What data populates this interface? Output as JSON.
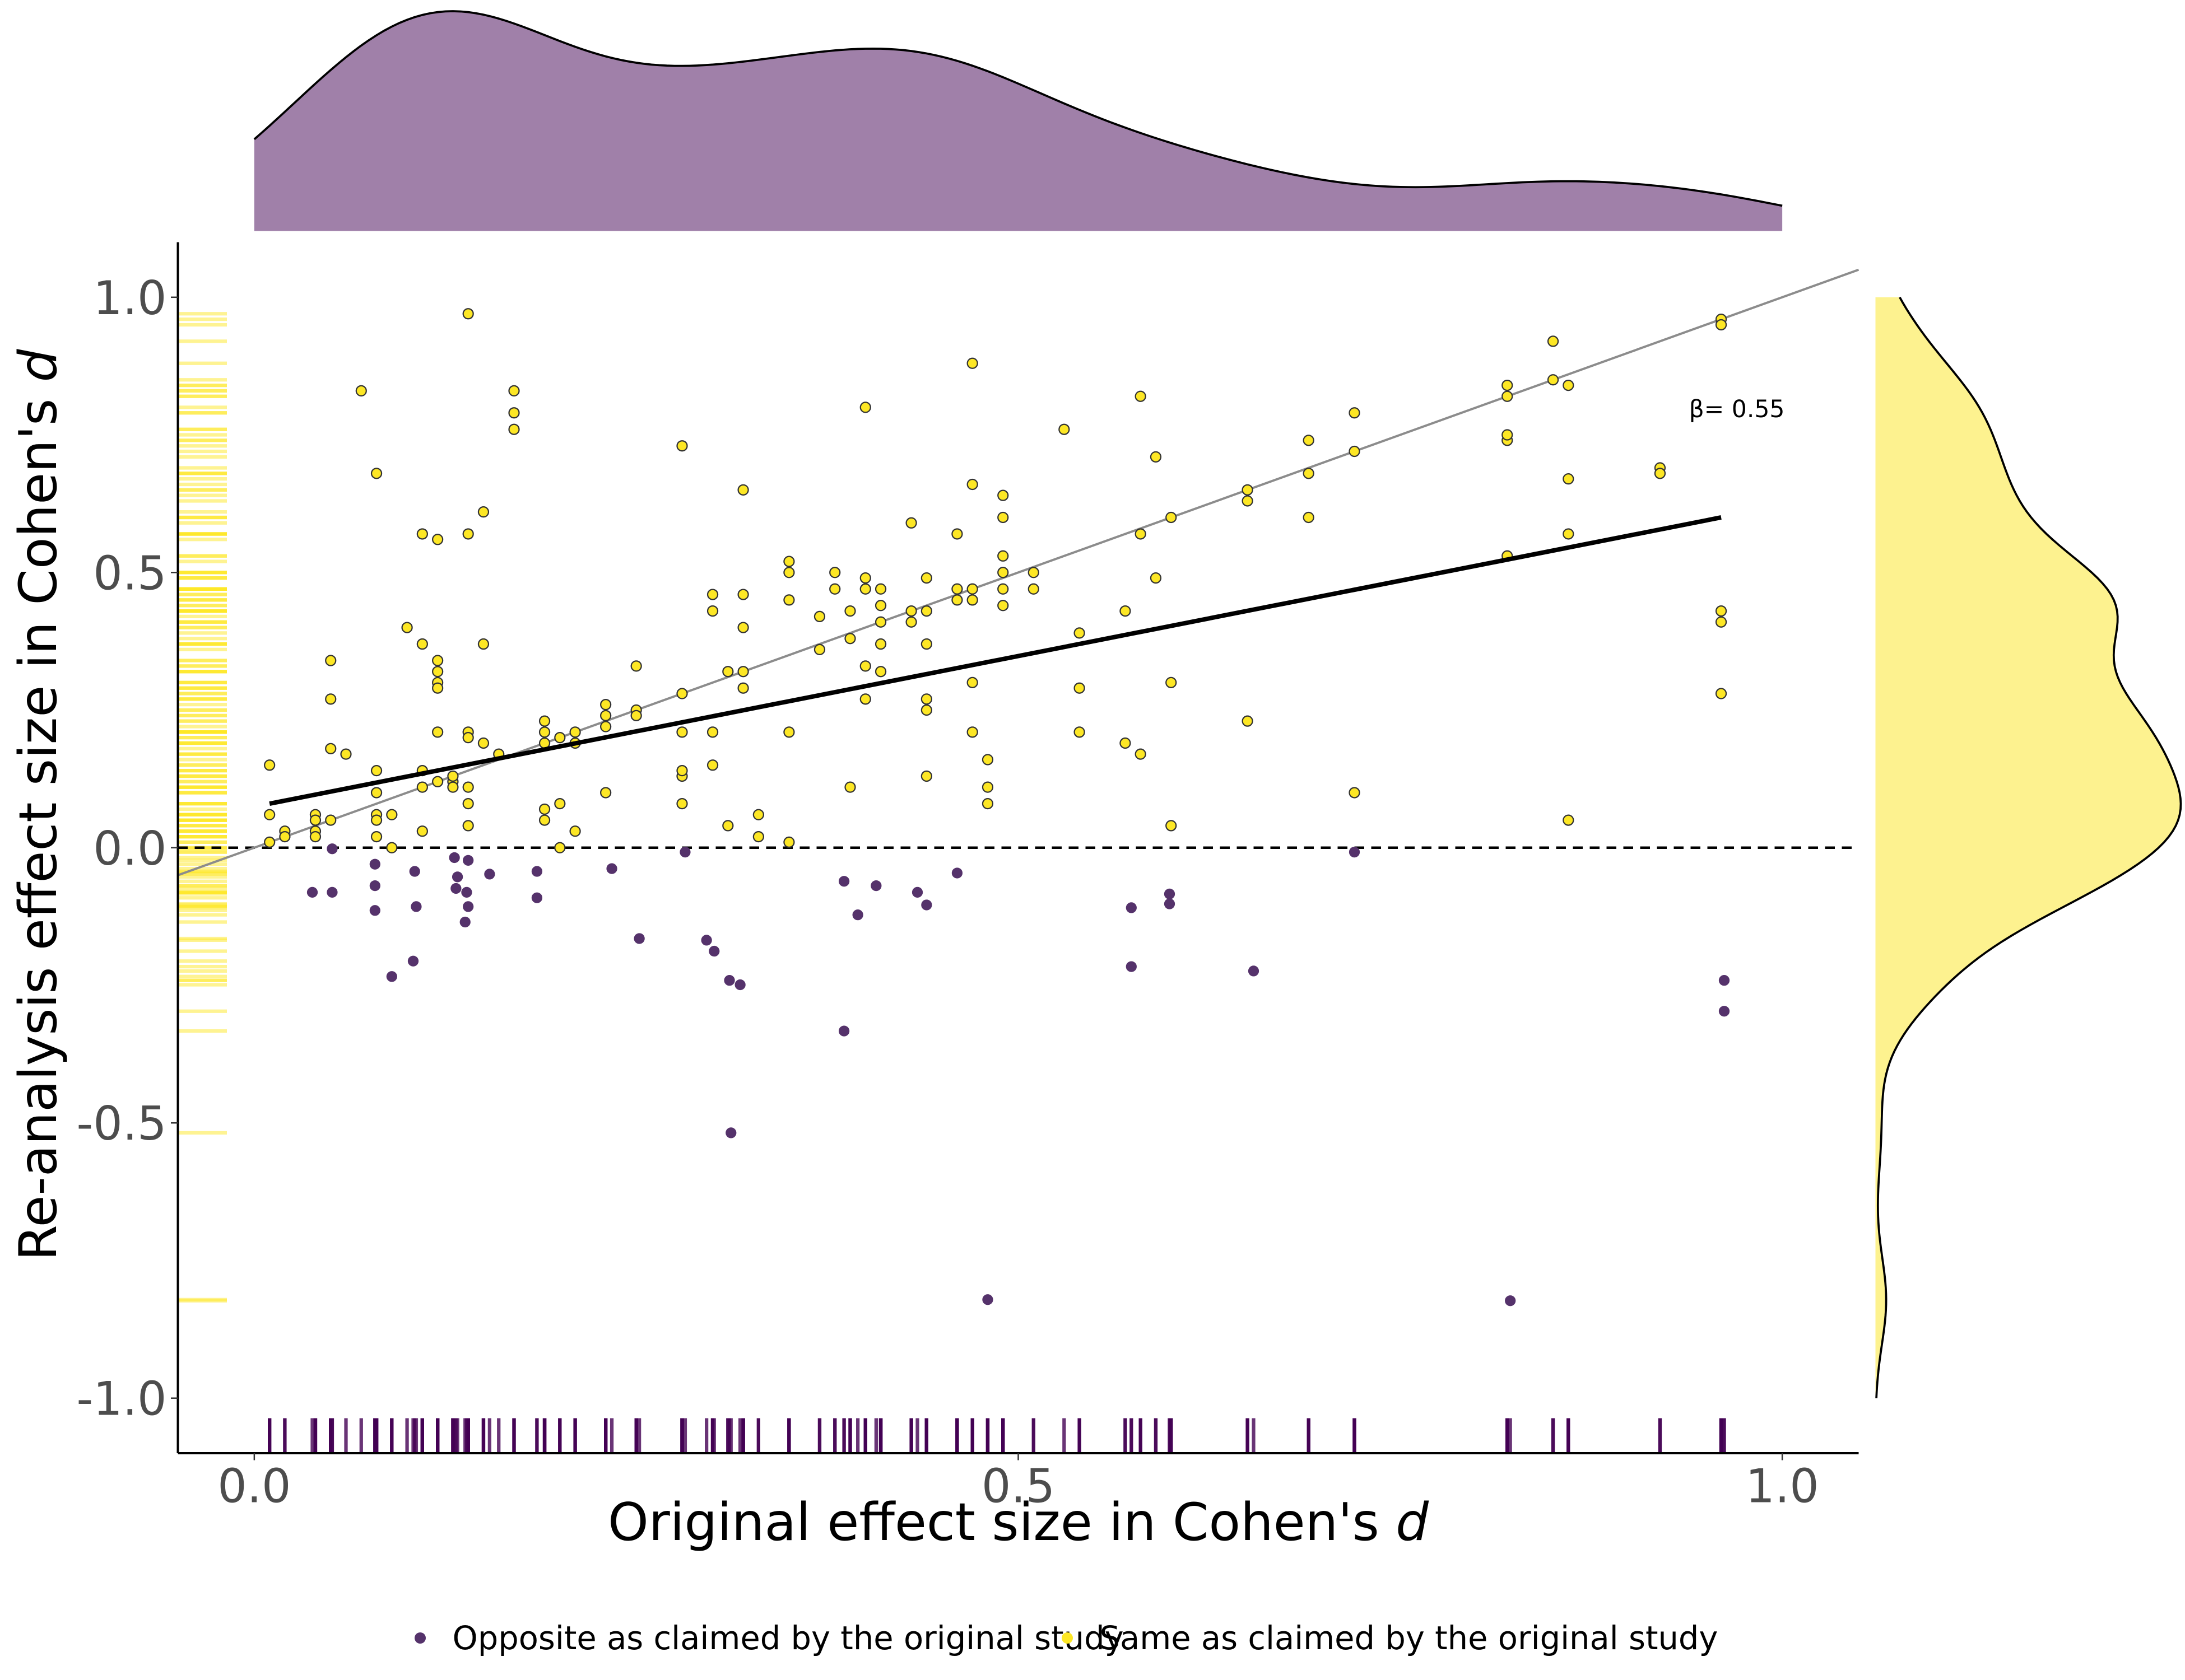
{
  "chart_data": {
    "type": "scatter",
    "xlabel": [
      "Original effect size in Cohen's ",
      "d"
    ],
    "ylabel": [
      "Re-analysis effect size in Cohen's ",
      "d"
    ],
    "annotation": "β= 0.55",
    "xlim": [
      -0.05,
      1.05
    ],
    "ylim": [
      -1.1,
      1.1
    ],
    "xticks": [
      {
        "value": 0,
        "label": "0.0"
      },
      {
        "value": 0.5,
        "label": "0.5"
      },
      {
        "value": 1,
        "label": "1.0"
      }
    ],
    "yticks": [
      {
        "value": -1,
        "label": "-1.0"
      },
      {
        "value": -0.5,
        "label": "-0.5"
      },
      {
        "value": 0,
        "label": "0.0"
      },
      {
        "value": 0.5,
        "label": "0.5"
      },
      {
        "value": 1,
        "label": "1.0"
      }
    ],
    "hline": 0,
    "regression": {
      "x": [
        0.01,
        0.96
      ],
      "y": [
        0.08,
        0.6
      ]
    },
    "marginal_x_color": "#a080a9",
    "marginal_y_color": "#fdf28f",
    "rug_x_color": "#440154",
    "rug_y_color": "#fde725",
    "series": [
      {
        "name": "Opposite as claimed by the original study",
        "color": "#55326b",
        "x": [
          0.038,
          0.051,
          0.051,
          0.079,
          0.079,
          0.079,
          0.09,
          0.105,
          0.104,
          0.106,
          0.131,
          0.132,
          0.133,
          0.139,
          0.14,
          0.138,
          0.14,
          0.154,
          0.185,
          0.185,
          0.234,
          0.252,
          0.282,
          0.296,
          0.301,
          0.311,
          0.318,
          0.312,
          0.386,
          0.386,
          0.395,
          0.407,
          0.434,
          0.44,
          0.46,
          0.48,
          0.574,
          0.574,
          0.599,
          0.599,
          0.654,
          0.72,
          0.822,
          0.962,
          0.962
        ],
        "values": [
          -0.081,
          -0.002,
          -0.081,
          -0.03,
          -0.069,
          -0.114,
          -0.234,
          -0.043,
          -0.206,
          -0.107,
          -0.018,
          -0.074,
          -0.053,
          -0.081,
          -0.107,
          -0.135,
          -0.023,
          -0.048,
          -0.043,
          -0.091,
          -0.038,
          -0.165,
          -0.008,
          -0.168,
          -0.188,
          -0.241,
          -0.249,
          -0.518,
          -0.061,
          -0.333,
          -0.122,
          -0.069,
          -0.081,
          -0.104,
          -0.046,
          -0.821,
          -0.109,
          -0.216,
          -0.084,
          -0.102,
          -0.224,
          -0.008,
          -0.823,
          -0.241,
          -0.297
        ]
      },
      {
        "name": "Same as claimed by the original study",
        "color": "#fde725",
        "x": [
          0.01,
          0.01,
          0.01,
          0.02,
          0.02,
          0.04,
          0.04,
          0.04,
          0.04,
          0.05,
          0.05,
          0.05,
          0.06,
          0.05,
          0.07,
          0.08,
          0.08,
          0.08,
          0.08,
          0.08,
          0.08,
          0.09,
          0.09,
          0.1,
          0.11,
          0.11,
          0.11,
          0.11,
          0.12,
          0.11,
          0.12,
          0.12,
          0.12,
          0.12,
          0.12,
          0.12,
          0.13,
          0.13,
          0.13,
          0.14,
          0.14,
          0.14,
          0.14,
          0.14,
          0.14,
          0.14,
          0.15,
          0.15,
          0.15,
          0.17,
          0.17,
          0.17,
          0.16,
          0.19,
          0.19,
          0.19,
          0.19,
          0.19,
          0.2,
          0.2,
          0.2,
          0.21,
          0.21,
          0.21,
          0.23,
          0.23,
          0.23,
          0.23,
          0.25,
          0.25,
          0.25,
          0.28,
          0.28,
          0.28,
          0.28,
          0.28,
          0.28,
          0.3,
          0.3,
          0.3,
          0.3,
          0.31,
          0.31,
          0.32,
          0.32,
          0.32,
          0.32,
          0.32,
          0.33,
          0.33,
          0.35,
          0.35,
          0.35,
          0.35,
          0.35,
          0.37,
          0.37,
          0.38,
          0.38,
          0.39,
          0.39,
          0.39,
          0.4,
          0.4,
          0.4,
          0.4,
          0.4,
          0.41,
          0.41,
          0.41,
          0.41,
          0.41,
          0.43,
          0.43,
          0.43,
          0.44,
          0.44,
          0.44,
          0.44,
          0.44,
          0.44,
          0.46,
          0.46,
          0.46,
          0.47,
          0.47,
          0.47,
          0.47,
          0.47,
          0.47,
          0.48,
          0.48,
          0.48,
          0.49,
          0.49,
          0.49,
          0.49,
          0.49,
          0.49,
          0.51,
          0.51,
          0.53,
          0.54,
          0.54,
          0.54,
          0.57,
          0.57,
          0.58,
          0.58,
          0.58,
          0.59,
          0.59,
          0.6,
          0.6,
          0.6,
          0.65,
          0.65,
          0.65,
          0.69,
          0.69,
          0.69,
          0.72,
          0.72,
          0.72,
          0.82,
          0.82,
          0.82,
          0.82,
          0.82,
          0.85,
          0.85,
          0.86,
          0.86,
          0.86,
          0.86,
          0.92,
          0.92,
          0.96,
          0.96,
          0.96,
          0.96,
          0.96
        ],
        "values": [
          0.15,
          0.06,
          0.01,
          0.03,
          0.02,
          0.06,
          0.05,
          0.03,
          0.02,
          0.34,
          0.27,
          0.18,
          0.17,
          0.05,
          0.83,
          0.14,
          0.1,
          0.06,
          0.05,
          0.02,
          0.68,
          0.06,
          0.0,
          0.4,
          0.57,
          0.14,
          0.11,
          0.03,
          0.56,
          0.37,
          0.32,
          0.3,
          0.34,
          0.29,
          0.21,
          0.12,
          0.12,
          0.13,
          0.11,
          0.57,
          0.21,
          0.97,
          0.2,
          0.08,
          0.04,
          0.11,
          0.61,
          0.37,
          0.19,
          0.83,
          0.79,
          0.76,
          0.17,
          0.23,
          0.21,
          0.07,
          0.05,
          0.19,
          0.2,
          0.08,
          0.0,
          0.21,
          0.19,
          0.03,
          0.26,
          0.24,
          0.22,
          0.1,
          0.33,
          0.25,
          0.24,
          0.73,
          0.13,
          0.08,
          0.28,
          0.21,
          0.14,
          0.15,
          0.46,
          0.43,
          0.21,
          0.04,
          0.32,
          0.65,
          0.46,
          0.4,
          0.32,
          0.29,
          0.06,
          0.02,
          0.01,
          0.45,
          0.52,
          0.5,
          0.21,
          0.42,
          0.36,
          0.5,
          0.47,
          0.43,
          0.38,
          0.11,
          0.49,
          0.47,
          0.8,
          0.33,
          0.27,
          0.44,
          0.37,
          0.32,
          0.47,
          0.41,
          0.59,
          0.43,
          0.41,
          0.43,
          0.37,
          0.49,
          0.27,
          0.25,
          0.13,
          0.45,
          0.47,
          0.57,
          0.47,
          0.88,
          0.66,
          0.45,
          0.3,
          0.21,
          0.16,
          0.11,
          0.08,
          0.64,
          0.6,
          0.47,
          0.44,
          0.53,
          0.5,
          0.5,
          0.47,
          0.76,
          0.39,
          0.29,
          0.21,
          0.43,
          0.19,
          0.57,
          0.82,
          0.17,
          0.49,
          0.71,
          0.6,
          0.3,
          0.04,
          0.23,
          0.65,
          0.63,
          0.74,
          0.68,
          0.6,
          0.79,
          0.72,
          0.1,
          0.53,
          0.74,
          0.82,
          0.84,
          0.75,
          0.92,
          0.85,
          0.84,
          0.67,
          0.57,
          0.05,
          0.69,
          0.68,
          0.96,
          0.95,
          0.43,
          0.41,
          0.28
        ]
      }
    ]
  }
}
